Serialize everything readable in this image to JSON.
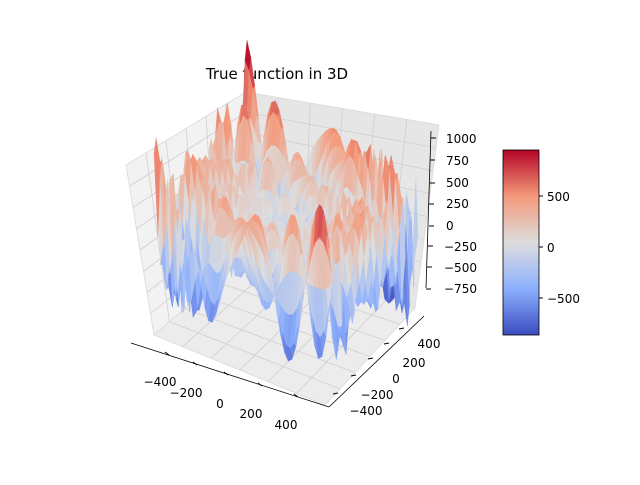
{
  "chart_data": {
    "type": "surface3d",
    "title": "True function in 3D",
    "x_ticks": [
      "−400",
      "−200",
      "0",
      "200",
      "400"
    ],
    "y_ticks": [
      "−400",
      "−200",
      "0",
      "200",
      "400"
    ],
    "z_ticks": [
      "−750",
      "−500",
      "−250",
      "0",
      "250",
      "500",
      "750",
      "1000"
    ],
    "xlim": [
      -512,
      512
    ],
    "ylim": [
      -512,
      512
    ],
    "zlim": [
      -960,
      1050
    ],
    "colormap": "coolwarm",
    "colorbar": {
      "ticks": [
        "500",
        "0",
        "−500"
      ],
      "range": [
        -850,
        950
      ]
    },
    "grid": true
  }
}
